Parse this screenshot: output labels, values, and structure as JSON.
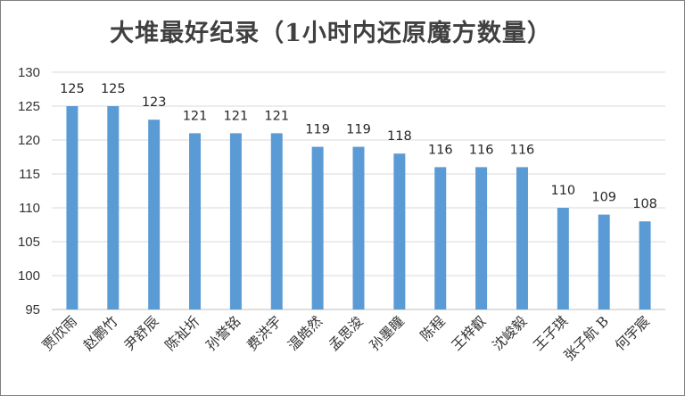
{
  "chart_data": {
    "type": "bar",
    "title": "大堆最好纪录（1小时内还原魔方数量）",
    "xlabel": "",
    "ylabel": "",
    "categories": [
      "贾欣雨",
      "赵鹏竹",
      "尹舒辰",
      "陈祉圻",
      "孙誉铭",
      "费洪宇",
      "温皓然",
      "孟思浚",
      "孙墨瞳",
      "陈程",
      "王梓叡",
      "沈峻毅",
      "王子琪",
      "张子航 B",
      "何宇宸"
    ],
    "values": [
      125,
      125,
      123,
      121,
      121,
      121,
      119,
      119,
      118,
      116,
      116,
      116,
      110,
      109,
      108
    ],
    "ylim": [
      95,
      130
    ],
    "yticks": [
      95,
      100,
      105,
      110,
      115,
      120,
      125,
      130
    ],
    "grid": true,
    "bar_color": "#5b9bd5",
    "data_labels": true
  }
}
